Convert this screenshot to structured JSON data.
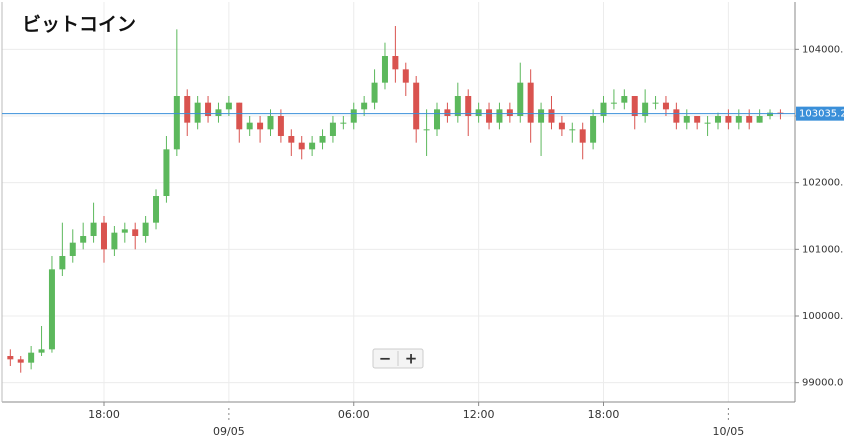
{
  "chart_data": {
    "type": "candlestick",
    "title": "ビットコイン",
    "x": [
      -10.5,
      -10,
      -9.5,
      -9,
      -8.5,
      -8,
      -7.5,
      -7,
      -6.5,
      -6,
      -5.5,
      -5,
      -4.5,
      -4,
      -3.5,
      -3,
      -2.5,
      -2,
      -1.5,
      -1,
      -0.5,
      0,
      0.5,
      1,
      1.5,
      2,
      2.5,
      3,
      3.5,
      4,
      4.5,
      5,
      5.5,
      6,
      6.5,
      7,
      7.5,
      8,
      8.5,
      9,
      9.5,
      10,
      10.5,
      11,
      11.5,
      12,
      12.5,
      13,
      13.5,
      14,
      14.5,
      15,
      15.5,
      16,
      16.5,
      17,
      17.5,
      18,
      18.5,
      19,
      19.5,
      20,
      20.5,
      21,
      21.5,
      22,
      22.5,
      23,
      23.5,
      24,
      24.5,
      25,
      25.5,
      26,
      26.5
    ],
    "open": [
      99400,
      99350,
      99300,
      99450,
      99500,
      100700,
      100900,
      101100,
      101200,
      101400,
      101000,
      101250,
      101300,
      101200,
      101400,
      101800,
      102500,
      103300,
      102900,
      103200,
      103000,
      103100,
      103200,
      102800,
      102900,
      102800,
      103000,
      102700,
      102600,
      102500,
      102600,
      102700,
      102900,
      102900,
      103100,
      103200,
      103500,
      103900,
      103700,
      103500,
      102800,
      102800,
      103100,
      103000,
      103300,
      103000,
      103100,
      102900,
      103100,
      103000,
      103500,
      102900,
      103100,
      102900,
      102800,
      102800,
      102600,
      103000,
      103200,
      103200,
      103300,
      103000,
      103200,
      103200,
      103100,
      102900,
      103000,
      102900,
      102900,
      103000,
      102900,
      103000,
      102900,
      103000,
      103050
    ],
    "high": [
      99500,
      99400,
      99550,
      99850,
      100900,
      101400,
      101300,
      101400,
      101700,
      101500,
      101350,
      101400,
      101400,
      101500,
      101900,
      102700,
      104300,
      103400,
      103300,
      103300,
      103200,
      103300,
      103200,
      103000,
      103000,
      103100,
      103100,
      102800,
      102700,
      102700,
      102800,
      103000,
      103000,
      103200,
      103300,
      103700,
      104100,
      104350,
      103800,
      103600,
      103100,
      103200,
      103200,
      103500,
      103400,
      103200,
      103200,
      103200,
      103200,
      103800,
      103700,
      103200,
      103300,
      103000,
      102900,
      102900,
      103100,
      103300,
      103400,
      103400,
      103300,
      103400,
      103300,
      103300,
      103200,
      103100,
      103000,
      103000,
      103050,
      103100,
      103100,
      103100,
      103100,
      103100,
      103100
    ],
    "low": [
      99250,
      99150,
      99200,
      99400,
      99450,
      100600,
      100800,
      101000,
      101100,
      100800,
      100900,
      101100,
      101000,
      101100,
      101300,
      101700,
      102400,
      102700,
      102800,
      102900,
      102900,
      103000,
      102600,
      102700,
      102600,
      102700,
      102600,
      102400,
      102350,
      102400,
      102500,
      102600,
      102800,
      102800,
      103000,
      103100,
      103400,
      103500,
      103300,
      102600,
      102400,
      102700,
      102900,
      102900,
      102700,
      102900,
      102800,
      102800,
      102900,
      102900,
      102600,
      102400,
      102800,
      102700,
      102600,
      102350,
      102500,
      102900,
      103100,
      103100,
      102800,
      102900,
      103100,
      103000,
      102800,
      102800,
      102800,
      102700,
      102800,
      102800,
      102800,
      102800,
      102900,
      102950,
      102950
    ],
    "close": [
      99350,
      99300,
      99450,
      99500,
      100700,
      100900,
      101100,
      101200,
      101400,
      101000,
      101250,
      101300,
      101200,
      101400,
      101800,
      102500,
      103300,
      102900,
      103200,
      103000,
      103100,
      103200,
      102800,
      102900,
      102800,
      103000,
      102700,
      102600,
      102500,
      102600,
      102700,
      102900,
      102900,
      103100,
      103200,
      103500,
      103900,
      103700,
      103500,
      102800,
      102800,
      103100,
      103000,
      103300,
      103000,
      103100,
      102900,
      103100,
      103000,
      103500,
      102900,
      103100,
      102900,
      102800,
      102800,
      102600,
      103000,
      103200,
      103200,
      103300,
      103000,
      103200,
      103200,
      103100,
      102900,
      103000,
      102900,
      102900,
      103000,
      102900,
      103000,
      102900,
      103000,
      103050,
      103035.2
    ],
    "up_color": "#5cb85c",
    "down_color": "#d9534f",
    "price_line_color": "#3a8fd9",
    "xlim": [
      -10.9,
      27.2
    ],
    "ylim": [
      98710,
      104710
    ],
    "xticks": [
      {
        "value": -6,
        "label": "18:00"
      },
      {
        "value": 6,
        "label": "06:00"
      },
      {
        "value": 12,
        "label": "12:00"
      },
      {
        "value": 18,
        "label": "18:00"
      }
    ],
    "date_ticks": [
      {
        "value": 0,
        "label": "09/05"
      },
      {
        "value": 24,
        "label": "10/05"
      }
    ],
    "yticks": [
      {
        "value": 99000,
        "label": "99000.0"
      },
      {
        "value": 100000,
        "label": "100000.0"
      },
      {
        "value": 101000,
        "label": "101000.0"
      },
      {
        "value": 102000,
        "label": "102000.0"
      },
      {
        "value": 103000,
        "label": "103000.0"
      },
      {
        "value": 104000,
        "label": "104000.0"
      }
    ],
    "grid": true,
    "zoom_controls": [
      "−",
      "+"
    ]
  }
}
